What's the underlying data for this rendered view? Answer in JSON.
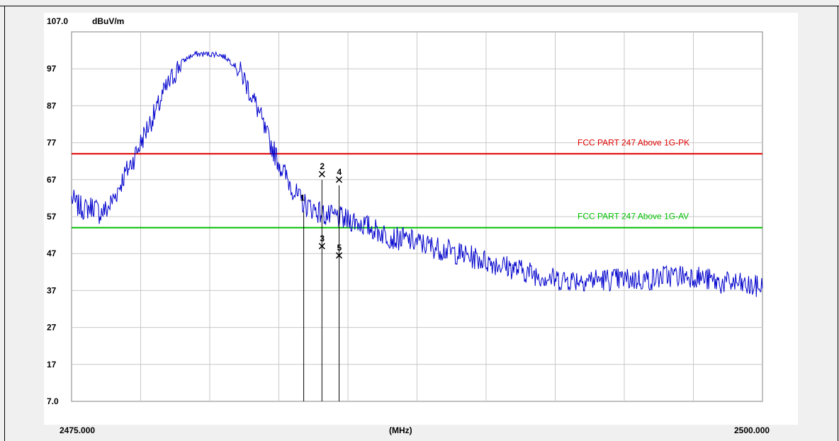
{
  "chart_data": {
    "type": "line",
    "y_unit": "dBuV/m",
    "x_unit": "(MHz)",
    "x_range": [
      2475.0,
      2500.0
    ],
    "ylim": [
      7.0,
      107.0
    ],
    "y_tick_labels": [
      "107.0",
      "97",
      "87",
      "77",
      "67",
      "57",
      "47",
      "37",
      "27",
      "17",
      "7.0"
    ],
    "x_tick_labels": [
      "2475.000",
      "2500.000"
    ],
    "grid": true,
    "limit_lines": [
      {
        "name": "FCC PART 247 Above 1G-PK",
        "value": 74.0,
        "color": "#e00000"
      },
      {
        "name": "FCC PART 247 Above 1G-AV",
        "value": 54.0,
        "color": "#00c000"
      }
    ],
    "series": [
      {
        "color": "#0000cc",
        "x": [
          2475.0,
          2475.2,
          2475.5,
          2475.8,
          2476.0,
          2476.3,
          2476.6,
          2476.9,
          2477.2,
          2477.5,
          2477.8,
          2478.1,
          2478.3,
          2478.6,
          2478.9,
          2479.2,
          2479.5,
          2479.8,
          2480.0,
          2480.3,
          2480.6,
          2480.9,
          2481.2,
          2481.5,
          2481.8,
          2482.0,
          2482.3,
          2482.6,
          2482.9,
          2483.2,
          2483.5,
          2483.8,
          2484.0,
          2484.3,
          2484.6,
          2484.9,
          2485.2,
          2485.5,
          2485.8,
          2486.1,
          2486.4,
          2486.7,
          2487.0,
          2487.5,
          2488.0,
          2488.5,
          2489.0,
          2489.5,
          2490.0,
          2490.5,
          2491.0,
          2491.5,
          2492.0,
          2492.5,
          2493.0,
          2493.5,
          2494.0,
          2494.5,
          2495.0,
          2495.5,
          2496.0,
          2496.5,
          2497.0,
          2497.5,
          2498.0,
          2498.5,
          2499.0,
          2499.5,
          2500.0
        ],
        "values": [
          62,
          60,
          59,
          60,
          58,
          59,
          63,
          68,
          72,
          77,
          82,
          86,
          90,
          94,
          98,
          100,
          101,
          101,
          101,
          101,
          100,
          98,
          95,
          90,
          85,
          80,
          75,
          70,
          66,
          62,
          60,
          59,
          58,
          57,
          57,
          56,
          56,
          55,
          54,
          53,
          52,
          51,
          51,
          50,
          49,
          48,
          47,
          46,
          45,
          44,
          43,
          42,
          41,
          40,
          40,
          40,
          40,
          40,
          40,
          40,
          40,
          41,
          41,
          41,
          40,
          39,
          39,
          38,
          38
        ]
      }
    ],
    "markers": [
      {
        "label": "1",
        "freq": 2483.4,
        "level": 60.0
      },
      {
        "label": "2",
        "freq": 2484.06,
        "level": 68.5
      },
      {
        "label": "3",
        "freq": 2484.06,
        "level": 49.0
      },
      {
        "label": "4",
        "freq": 2484.68,
        "level": 67.0
      },
      {
        "label": "5",
        "freq": 2484.68,
        "level": 46.5
      }
    ]
  }
}
